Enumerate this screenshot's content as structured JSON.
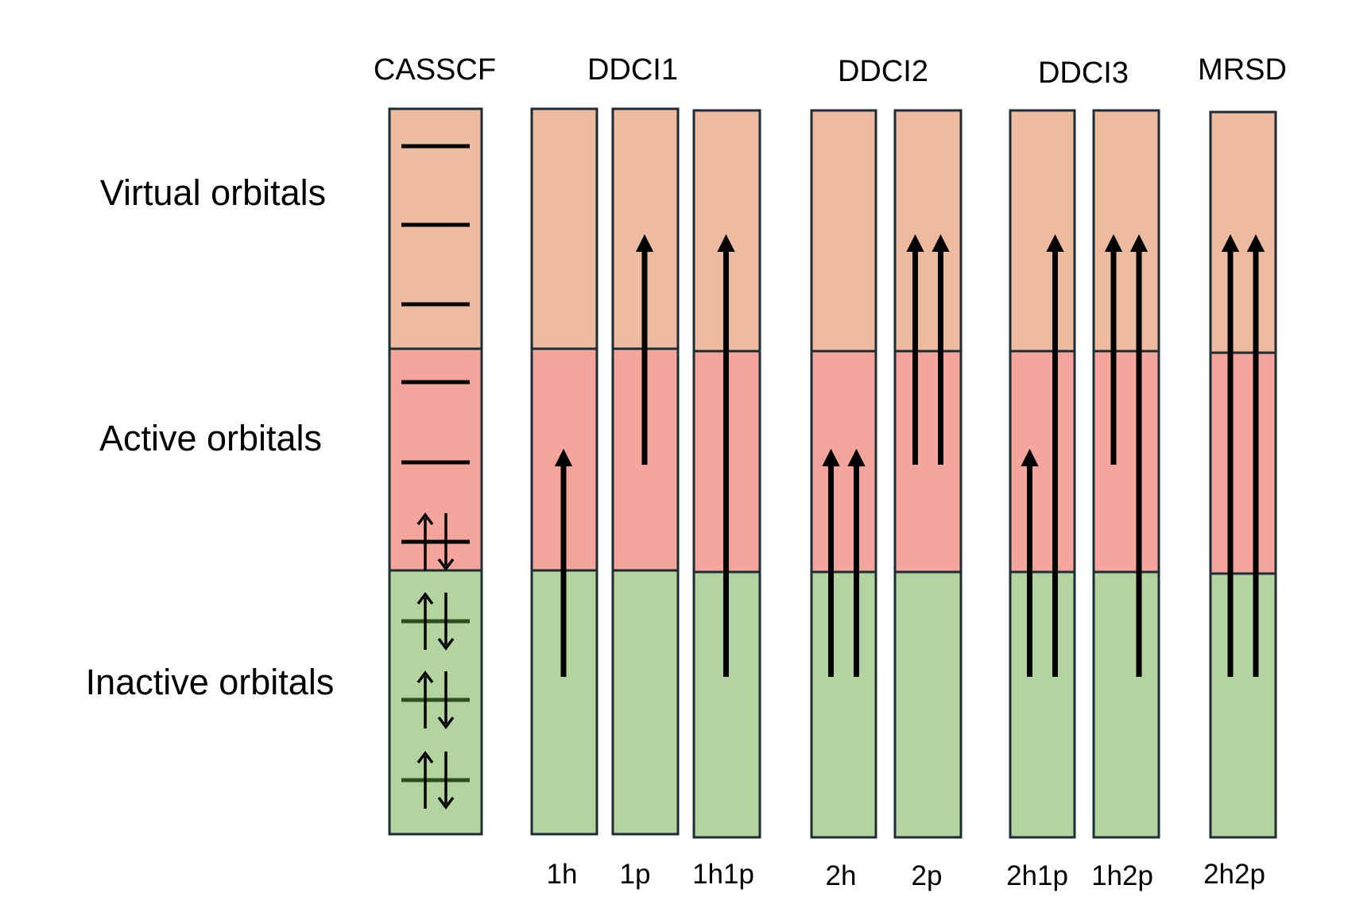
{
  "colors": {
    "virtual": "#ECBBA0",
    "active": "#F5A59B",
    "inactive": "#B4D49F",
    "border": "#1E2C35",
    "arrow": "#000000",
    "inactive_level": "#2E4D1E"
  },
  "row_labels": {
    "virtual": "Virtual orbitals",
    "active": "Active orbitals",
    "inactive": "Inactive orbitals"
  },
  "methods": {
    "casscf": "CASSCF",
    "ddci1": "DDCI1",
    "ddci2": "DDCI2",
    "ddci3": "DDCI3",
    "mrsd": "MRSD"
  },
  "excitations": {
    "1h": "1h",
    "1p": "1p",
    "1h1p": "1h1p",
    "2h": "2h",
    "2p": "2p",
    "2h1p": "2h1p",
    "1h2p": "1h2p",
    "2h2p": "2h2p"
  },
  "casscf": {
    "virtual_levels": 3,
    "active_levels": 3,
    "active_doubly_occupied": 1,
    "inactive_levels": 3,
    "inactive_doubly_occupied": 3
  },
  "excitation_arrows": {
    "1h": [
      {
        "from": "inactive",
        "to": "active"
      }
    ],
    "1p": [
      {
        "from": "active",
        "to": "virtual"
      }
    ],
    "1h1p": [
      {
        "from": "inactive",
        "to": "virtual"
      }
    ],
    "2h": [
      {
        "from": "inactive",
        "to": "active"
      },
      {
        "from": "inactive",
        "to": "active"
      }
    ],
    "2p": [
      {
        "from": "active",
        "to": "virtual"
      },
      {
        "from": "active",
        "to": "virtual"
      }
    ],
    "2h1p": [
      {
        "from": "inactive",
        "to": "active"
      },
      {
        "from": "inactive",
        "to": "virtual"
      }
    ],
    "1h2p": [
      {
        "from": "active",
        "to": "virtual"
      },
      {
        "from": "inactive",
        "to": "virtual"
      }
    ],
    "2h2p": [
      {
        "from": "inactive",
        "to": "virtual"
      },
      {
        "from": "inactive",
        "to": "virtual"
      }
    ]
  }
}
